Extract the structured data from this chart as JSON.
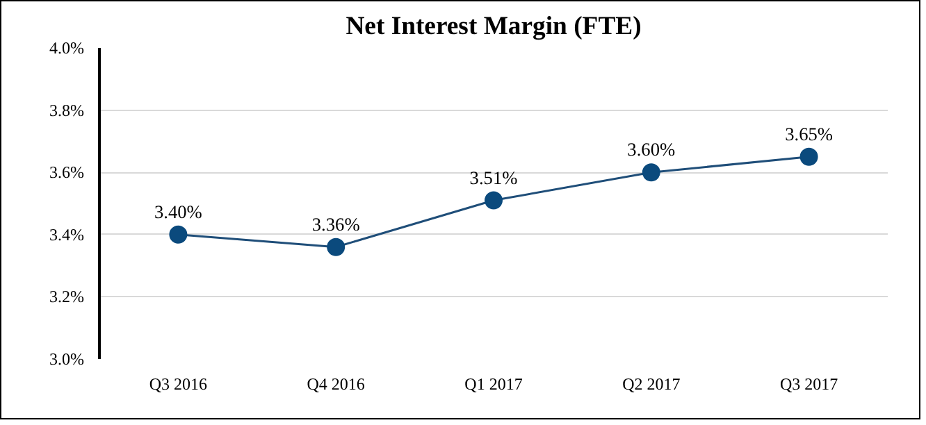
{
  "chart_data": {
    "type": "line",
    "title": "Net Interest Margin (FTE)",
    "categories": [
      "Q3 2016",
      "Q4 2016",
      "Q1 2017",
      "Q2 2017",
      "Q3 2017"
    ],
    "series": [
      {
        "color": "#1f4e79",
        "values": [
          3.4,
          3.36,
          3.51,
          3.6,
          3.65
        ],
        "value_labels": [
          "3.40%",
          "3.36%",
          "3.51%",
          "3.60%",
          "3.65%"
        ]
      }
    ],
    "ylim": [
      3.0,
      4.0
    ],
    "yticks": [
      {
        "value": 3.0,
        "label": "3.0%"
      },
      {
        "value": 3.2,
        "label": "3.2%"
      },
      {
        "value": 3.4,
        "label": "3.4%"
      },
      {
        "value": 3.6,
        "label": "3.6%"
      },
      {
        "value": 3.8,
        "label": "3.8%"
      },
      {
        "value": 4.0,
        "label": "4.0%"
      }
    ],
    "grid": "y",
    "marker": "circle",
    "line_style": "solid"
  }
}
